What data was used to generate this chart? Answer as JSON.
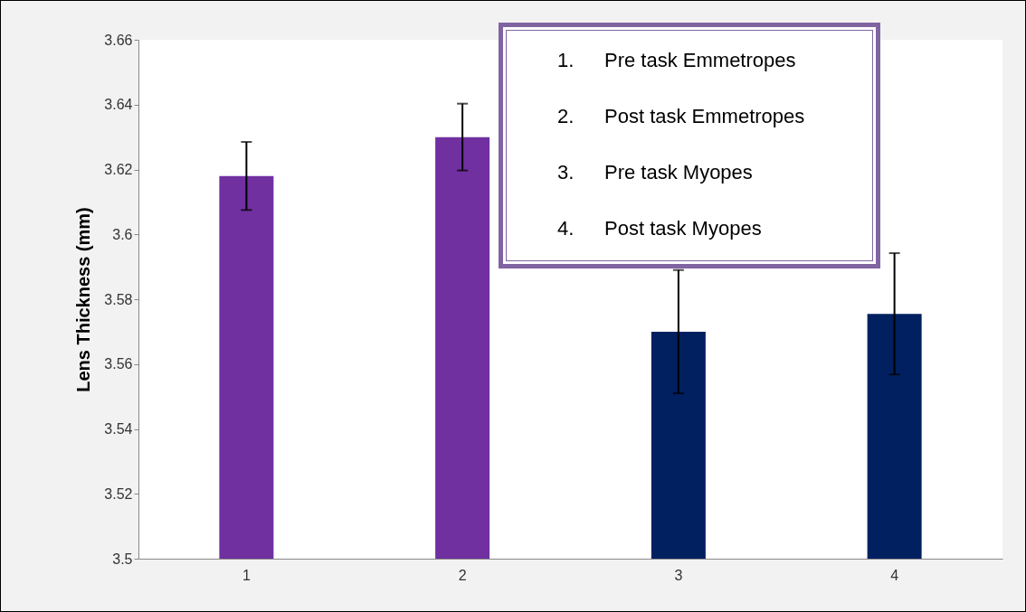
{
  "chart_data": {
    "type": "bar",
    "ylabel": "Lens Thickness (mm)",
    "categories": [
      "1",
      "2",
      "3",
      "4"
    ],
    "values": [
      3.618,
      3.63,
      3.57,
      3.5755
    ],
    "errors": [
      0.0105,
      0.0103,
      0.019,
      0.0187
    ],
    "colors": [
      "#7030a0",
      "#7030a0",
      "#002060",
      "#002060"
    ],
    "ylim": [
      3.5,
      3.66
    ],
    "yticks": [
      3.5,
      3.52,
      3.54,
      3.56,
      3.58,
      3.6,
      3.62,
      3.64,
      3.66
    ],
    "grid": false,
    "annotations": [
      "1.\tPre task Emmetropes",
      "2.\tPost task Emmetropes",
      "3.\tPre task Myopes",
      "4.\tPost task Myopes"
    ]
  }
}
